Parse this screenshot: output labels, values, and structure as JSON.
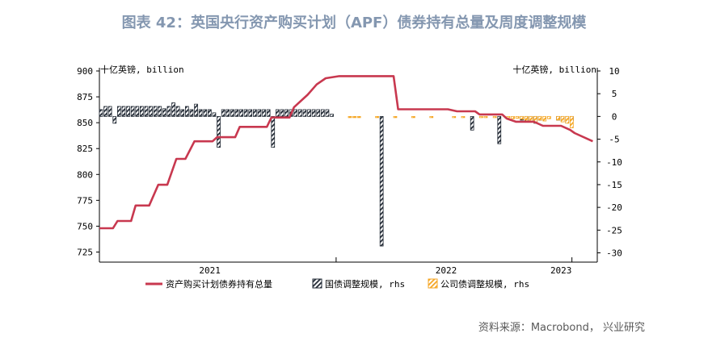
{
  "title": "图表 42：英国央行资产购买计划（APF）债券持有总量及周度调整规模",
  "source": "资料来源：Macrobond， 兴业研究",
  "colors": {
    "title": "#8497b0",
    "line": "#c8384f",
    "gov_bar": "#222a35",
    "corp_bar": "#f5a623"
  },
  "chart_data": {
    "type": "combo",
    "left_axis_unit": "十亿英镑, billion",
    "right_axis_unit": "十亿英镑, billion",
    "left_ylim": [
      725,
      900
    ],
    "right_ylim": [
      -30,
      10
    ],
    "left_ticks": [
      725,
      750,
      775,
      800,
      825,
      850,
      875,
      900
    ],
    "right_ticks": [
      -30,
      -25,
      -20,
      -15,
      -10,
      -5,
      0,
      5,
      10
    ],
    "x_labels": [
      "2021",
      "2022",
      "2023"
    ],
    "x_range": [
      0,
      110
    ],
    "x_label_positions": [
      24.4,
      76.6,
      102.0
    ],
    "x_gridlines": [
      52.3,
      104.4
    ],
    "series": [
      {
        "name": "资产购买计划债券持有总量",
        "axis": "left",
        "kind": "line",
        "x": [
          0,
          3,
          4,
          7,
          8,
          11,
          13,
          15,
          17,
          19,
          21,
          25,
          26,
          30,
          31,
          37,
          38,
          42,
          43,
          46,
          48,
          50,
          53,
          55,
          65,
          66,
          77,
          79,
          83,
          84,
          89,
          90,
          92,
          96,
          98,
          102,
          104,
          105,
          109
        ],
        "y": [
          748,
          748,
          755,
          755,
          770,
          770,
          790,
          790,
          815,
          815,
          832,
          832,
          836,
          836,
          846,
          846,
          855,
          855,
          865,
          877,
          887,
          893,
          895,
          895,
          895,
          863,
          863,
          861,
          861,
          858,
          858,
          854,
          851,
          851,
          847,
          847,
          843,
          840,
          832
        ]
      },
      {
        "name": "国债调整规模, rhs",
        "axis": "right",
        "kind": "bar",
        "x": [
          0,
          1,
          2,
          3,
          4,
          5,
          6,
          7,
          8,
          9,
          10,
          11,
          12,
          13,
          14,
          15,
          16,
          17,
          18,
          19,
          20,
          21,
          22,
          23,
          24,
          25,
          26,
          27,
          28,
          29,
          30,
          31,
          32,
          33,
          34,
          35,
          36,
          37,
          38,
          39,
          40,
          41,
          42,
          43,
          44,
          45,
          46,
          47,
          48,
          49,
          50,
          51,
          62,
          82,
          88,
          93,
          94,
          95,
          96,
          97,
          101,
          102,
          103,
          104
        ],
        "y": [
          1.5,
          2.2,
          2.2,
          -1.5,
          2.2,
          2.2,
          2.2,
          2.2,
          2.2,
          2.2,
          2.2,
          2.2,
          2.2,
          2.2,
          1.7,
          2.2,
          3.0,
          2.2,
          1.5,
          2.2,
          1.5,
          2.7,
          1.5,
          1.5,
          1.5,
          0.8,
          -6.8,
          1.5,
          1.5,
          1.5,
          1.5,
          1.5,
          1.5,
          1.5,
          1.5,
          1.5,
          1.5,
          1.5,
          -6.8,
          1.5,
          1.5,
          1.5,
          1.5,
          1.5,
          1.5,
          1.5,
          1.5,
          1.5,
          1.5,
          1.5,
          1.5,
          0.5,
          -28.5,
          -3.0,
          -6.0,
          -0.8,
          -1.2,
          -0.9,
          -1.5,
          -0.8,
          -0.8,
          -1.0,
          -1.4,
          -0.9
        ]
      },
      {
        "name": "公司债调整规模, rhs",
        "axis": "right",
        "kind": "bar",
        "x": [
          55,
          56,
          57,
          61,
          65,
          69,
          73,
          78,
          80,
          84,
          85,
          87,
          90,
          91,
          92,
          93,
          94,
          95,
          96,
          97,
          98,
          99,
          101,
          102,
          103,
          104
        ],
        "y": [
          -0.2,
          -0.2,
          -0.2,
          -0.2,
          -0.2,
          -0.2,
          -0.2,
          -0.2,
          -0.2,
          -0.2,
          -0.2,
          -0.2,
          -0.3,
          -0.5,
          -0.4,
          -0.6,
          -0.8,
          -1.0,
          -1.4,
          -0.8,
          -1.0,
          -0.5,
          -0.8,
          -1.2,
          -1.5,
          -2.5
        ]
      }
    ],
    "legend": {
      "position": "bottom",
      "items": [
        "资产购买计划债券持有总量",
        "国债调整规模, rhs",
        "公司债调整规模, rhs"
      ]
    }
  }
}
